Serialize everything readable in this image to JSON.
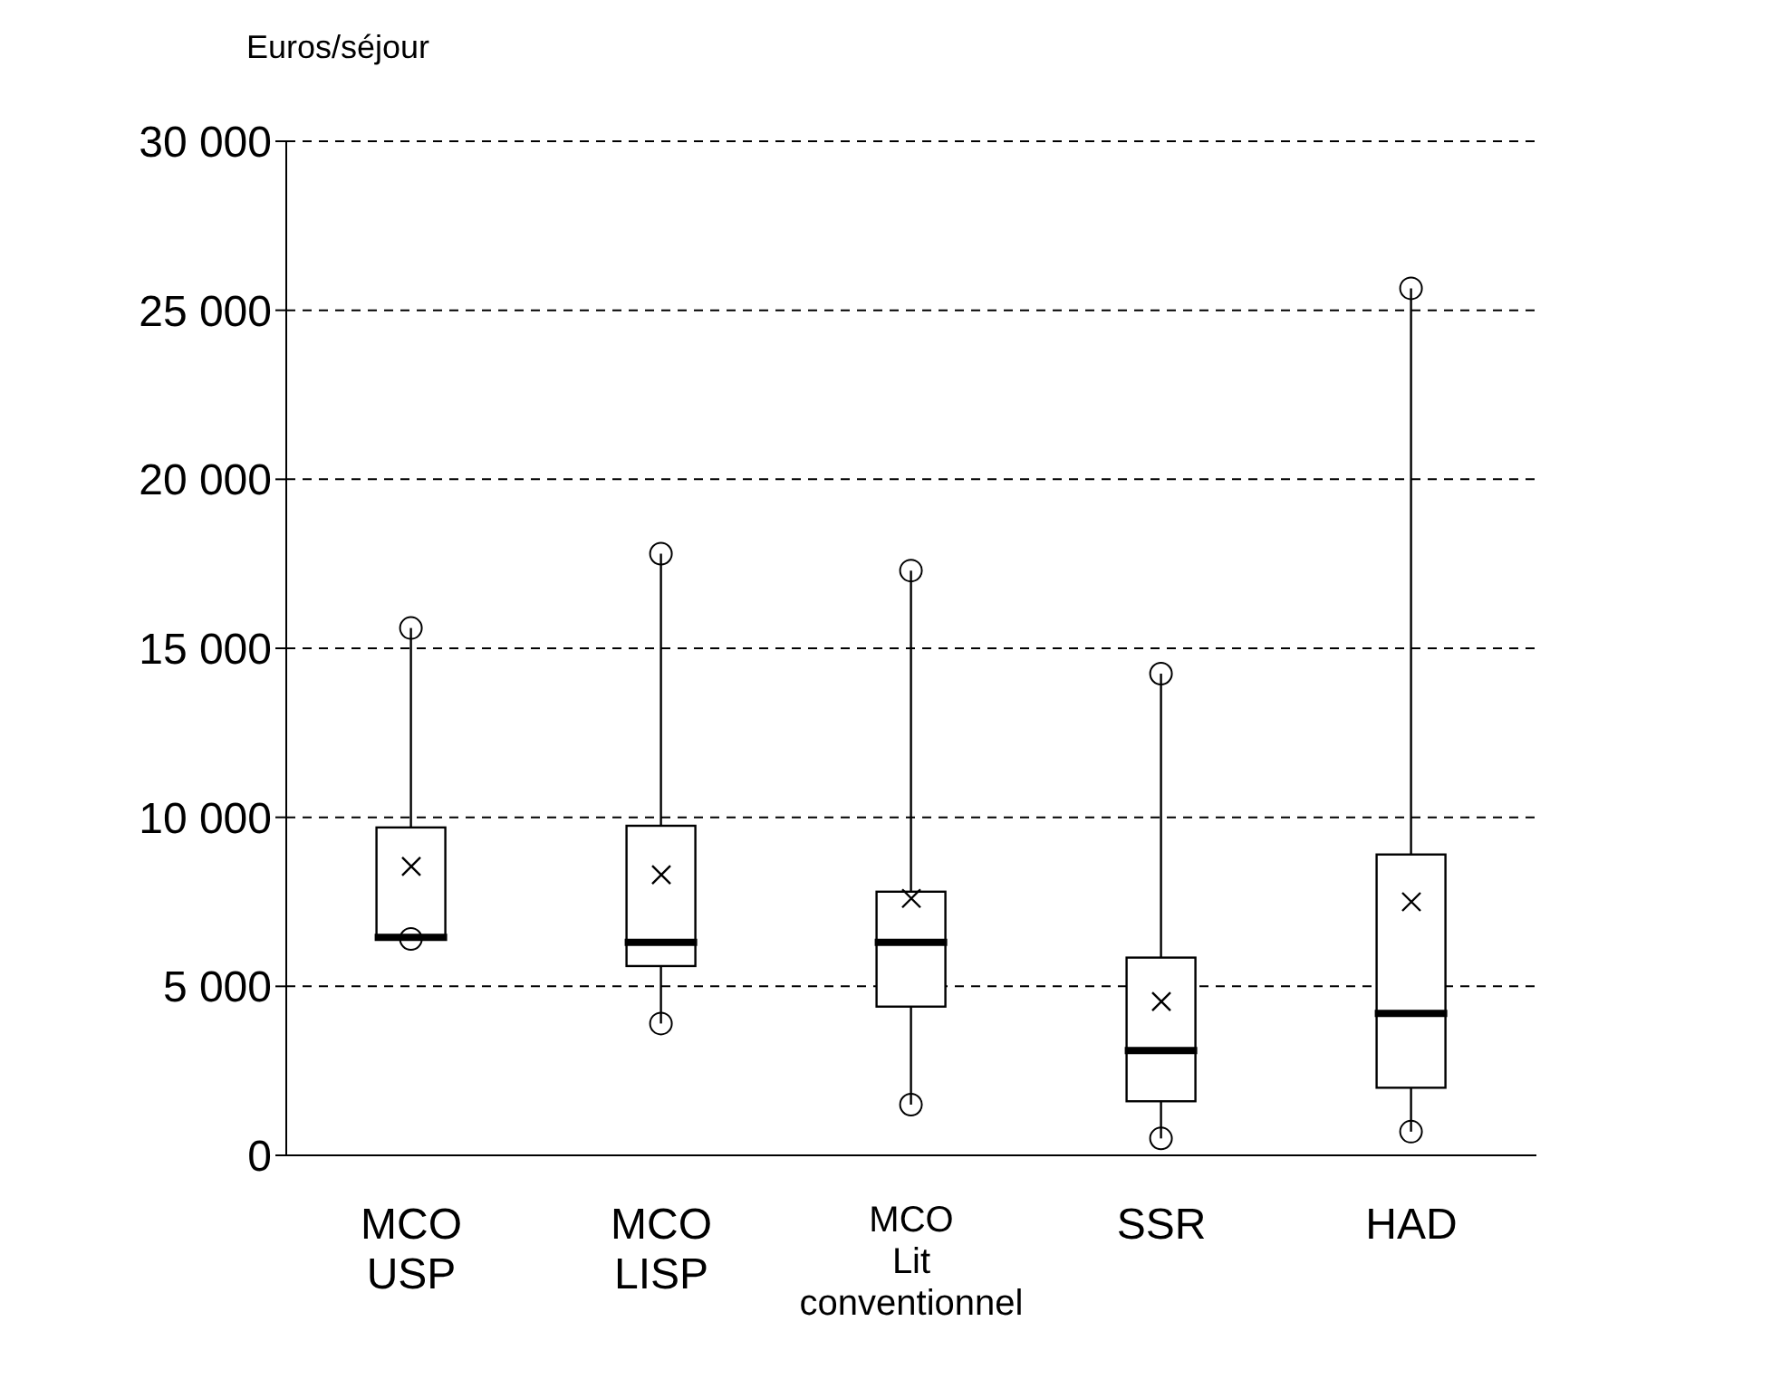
{
  "chart_data": {
    "type": "box",
    "ylabel": "Euros/séjour",
    "categories": [
      "MCO\nUSP",
      "MCO\nLISP",
      "MCO\nLit\nconventionnel",
      "SSR",
      "HAD"
    ],
    "boxes": [
      {
        "low": 6400,
        "q1": 6400,
        "median": 6450,
        "q3": 9700,
        "high": 15600,
        "mean": 8550,
        "outliers": [
          6400,
          15600
        ]
      },
      {
        "low": 3900,
        "q1": 5600,
        "median": 6300,
        "q3": 9750,
        "high": 17800,
        "mean": 8300,
        "outliers": [
          3900,
          17800
        ]
      },
      {
        "low": 1500,
        "q1": 4400,
        "median": 6300,
        "q3": 7800,
        "high": 17300,
        "mean": 7600,
        "outliers": [
          1500,
          17300
        ]
      },
      {
        "low": 500,
        "q1": 1600,
        "median": 3100,
        "q3": 5850,
        "high": 14250,
        "mean": 4550,
        "outliers": [
          500,
          14250
        ]
      },
      {
        "low": 700,
        "q1": 2000,
        "median": 4200,
        "q3": 8900,
        "high": 25650,
        "mean": 7500,
        "outliers": [
          700,
          25650
        ]
      }
    ],
    "color": "#000000",
    "marker": "cross",
    "ylim": [
      0,
      30000
    ],
    "yticks": [
      0,
      {
        "value": 5000,
        "label": "5 000"
      },
      {
        "value": 10000,
        "label": "10 000"
      },
      {
        "value": 15000,
        "label": "15 000"
      },
      {
        "value": 20000,
        "label": "20 000"
      },
      {
        "value": 25000,
        "label": "25 000"
      },
      {
        "value": 30000,
        "label": "30 000"
      }
    ],
    "grid": "y",
    "line_style": "dashed"
  }
}
